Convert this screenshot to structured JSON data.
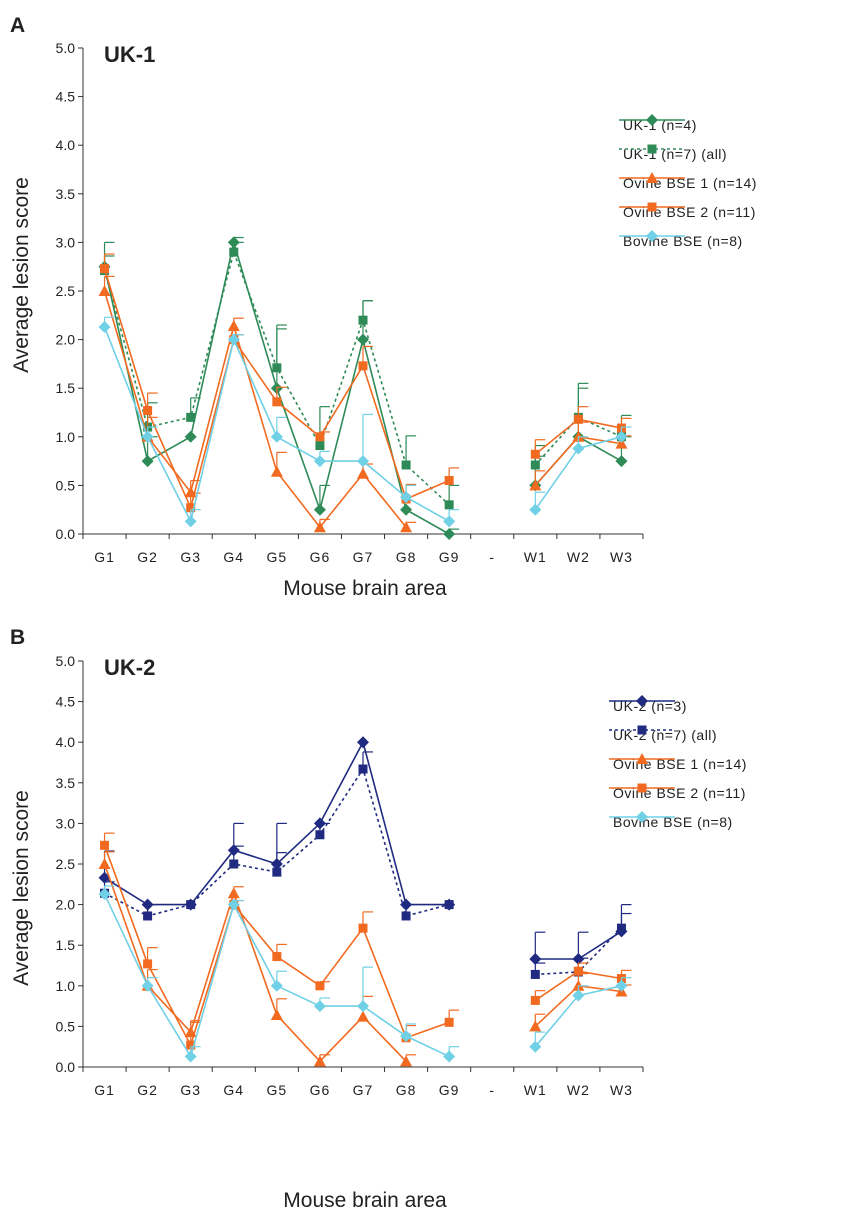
{
  "colors": {
    "uk1_solid": "#2e8b57",
    "uk1_dotted": "#2e8b57",
    "uk2_solid": "#1f2a80",
    "uk2_dotted": "#1f2a80",
    "ovine1": "#f26a20",
    "ovine2": "#f26a20",
    "bovine": "#6fd0e6"
  },
  "panels": [
    {
      "letter": "A",
      "title": "UK-1",
      "ylabel": "Average lesion score",
      "xlabel": "Mouse brain area"
    },
    {
      "letter": "B",
      "title": "UK-2",
      "ylabel": "Average lesion score",
      "xlabel": "Mouse brain area"
    }
  ],
  "chart_data": [
    {
      "type": "line",
      "title": "UK-1",
      "xlabel": "Mouse brain area",
      "ylabel": "Average lesion score",
      "categories": [
        "G1",
        "G2",
        "G3",
        "G4",
        "G5",
        "G6",
        "G7",
        "G8",
        "G9",
        "-",
        "W1",
        "W2",
        "W3"
      ],
      "ylim": [
        0,
        5
      ],
      "yticks": [
        "0.0",
        "0.5",
        "1.0",
        "1.5",
        "2.0",
        "2.5",
        "3.0",
        "3.5",
        "4.0",
        "4.5",
        "5.0"
      ],
      "legend_position": "top-right",
      "series": [
        {
          "name": "UK-1 (n=4)",
          "marker": "diamond",
          "style": "solid",
          "color_key": "uk1_solid",
          "values": [
            2.75,
            0.75,
            1.0,
            3.0,
            1.5,
            0.25,
            2.0,
            0.25,
            0.0,
            null,
            0.5,
            1.0,
            0.75
          ],
          "errors": [
            0.25,
            0.25,
            0,
            0.05,
            0.65,
            0.25,
            0.4,
            0,
            0.05,
            null,
            0.3,
            0.55,
            0.25
          ]
        },
        {
          "name": "UK-1 (n=7) (all)",
          "marker": "square",
          "style": "dotted",
          "color_key": "uk1_dotted",
          "values": [
            2.71,
            1.1,
            1.2,
            2.9,
            1.71,
            0.91,
            2.2,
            0.71,
            0.3,
            null,
            0.71,
            1.2,
            1.0
          ],
          "errors": [
            0.15,
            0.25,
            0.2,
            0.1,
            0.4,
            0.4,
            0.2,
            0.3,
            0.2,
            null,
            0.2,
            0.3,
            0.22
          ]
        },
        {
          "name": "Ovine BSE 1 (n=14)",
          "marker": "triangle",
          "style": "solid",
          "color_key": "ovine1",
          "values": [
            2.5,
            1.0,
            0.43,
            2.14,
            0.64,
            0.07,
            0.62,
            0.07,
            null,
            null,
            0.5,
            1.0,
            0.93
          ],
          "errors": [
            0.15,
            0.2,
            0.12,
            0.08,
            0.2,
            0.08,
            0.1,
            0.05,
            null,
            null,
            0.15,
            0.15,
            0.08
          ]
        },
        {
          "name": "Ovine BSE 2 (n=11)",
          "marker": "square",
          "style": "solid",
          "color_key": "ovine2",
          "values": [
            2.73,
            1.27,
            0.27,
            2.0,
            1.36,
            1.0,
            1.73,
            0.36,
            0.55,
            null,
            0.82,
            1.18,
            1.09
          ],
          "errors": [
            0.15,
            0.18,
            0.15,
            0.05,
            0.15,
            0.05,
            0.2,
            0.15,
            0.13,
            null,
            0.15,
            0.13,
            0.1
          ]
        },
        {
          "name": "Bovine BSE (n=8)",
          "marker": "diamond",
          "style": "solid",
          "color_key": "bovine",
          "values": [
            2.13,
            1.0,
            0.13,
            2.0,
            1.0,
            0.75,
            0.75,
            0.38,
            0.13,
            null,
            0.25,
            0.88,
            1.0
          ],
          "errors": [
            0.1,
            0.1,
            0.12,
            0.05,
            0.2,
            0.1,
            0.48,
            0.12,
            0.12,
            null,
            0.18,
            0.12,
            0.1
          ]
        }
      ]
    },
    {
      "type": "line",
      "title": "UK-2",
      "xlabel": "Mouse brain area",
      "ylabel": "Average lesion score",
      "categories": [
        "G1",
        "G2",
        "G3",
        "G4",
        "G5",
        "G6",
        "G7",
        "G8",
        "G9",
        "-",
        "W1",
        "W2",
        "W3"
      ],
      "ylim": [
        0,
        5
      ],
      "yticks": [
        "0.0",
        "0.5",
        "1.0",
        "1.5",
        "2.0",
        "2.5",
        "3.0",
        "3.5",
        "4.0",
        "4.5",
        "5.0"
      ],
      "legend_position": "top-right",
      "series": [
        {
          "name": "UK-2 (n=3)",
          "marker": "diamond",
          "style": "solid",
          "color_key": "uk2_solid",
          "values": [
            2.33,
            2.0,
            2.0,
            2.67,
            2.5,
            3.0,
            4.0,
            2.0,
            2.0,
            null,
            1.33,
            1.33,
            1.67
          ],
          "errors": [
            0.33,
            0,
            0,
            0.33,
            0.5,
            0,
            0,
            0,
            0,
            null,
            0.33,
            0.33,
            0.33
          ]
        },
        {
          "name": "UK-2 (n=7) (all)",
          "marker": "square",
          "style": "dotted",
          "color_key": "uk2_dotted",
          "values": [
            2.14,
            1.86,
            2.0,
            2.5,
            2.4,
            2.86,
            3.67,
            1.86,
            2.0,
            null,
            1.14,
            1.17,
            1.71
          ],
          "errors": [
            0.14,
            0.14,
            0,
            0.22,
            0.24,
            0.14,
            0.21,
            0.14,
            0,
            null,
            0.14,
            0.17,
            0.18
          ]
        },
        {
          "name": "Ovine BSE 1 (n=14)",
          "marker": "triangle",
          "style": "solid",
          "color_key": "ovine1",
          "values": [
            2.5,
            1.0,
            0.43,
            2.14,
            0.64,
            0.07,
            0.62,
            0.07,
            null,
            null,
            0.5,
            1.0,
            0.93
          ],
          "errors": [
            0.15,
            0.2,
            0.12,
            0.08,
            0.2,
            0.08,
            0.25,
            0.08,
            null,
            null,
            0.15,
            0.15,
            0.08
          ]
        },
        {
          "name": "Ovine BSE 2 (n=11)",
          "marker": "square",
          "style": "solid",
          "color_key": "ovine2",
          "values": [
            2.73,
            1.27,
            0.27,
            2.0,
            1.36,
            1.0,
            1.71,
            0.36,
            0.55,
            null,
            0.82,
            1.18,
            1.09
          ],
          "errors": [
            0.15,
            0.2,
            0.3,
            0.05,
            0.15,
            0.05,
            0.2,
            0.15,
            0.15,
            null,
            0.12,
            0.1,
            0.1
          ]
        },
        {
          "name": "Bovine BSE (n=8)",
          "marker": "diamond",
          "style": "solid",
          "color_key": "bovine",
          "values": [
            2.13,
            1.0,
            0.13,
            2.0,
            1.0,
            0.75,
            0.75,
            0.38,
            0.13,
            null,
            0.25,
            0.88,
            1.0
          ],
          "errors": [
            0.1,
            0.1,
            0.12,
            0.05,
            0.18,
            0.1,
            0.48,
            0.15,
            0.12,
            null,
            0.18,
            0.12,
            0.1
          ]
        }
      ]
    }
  ]
}
